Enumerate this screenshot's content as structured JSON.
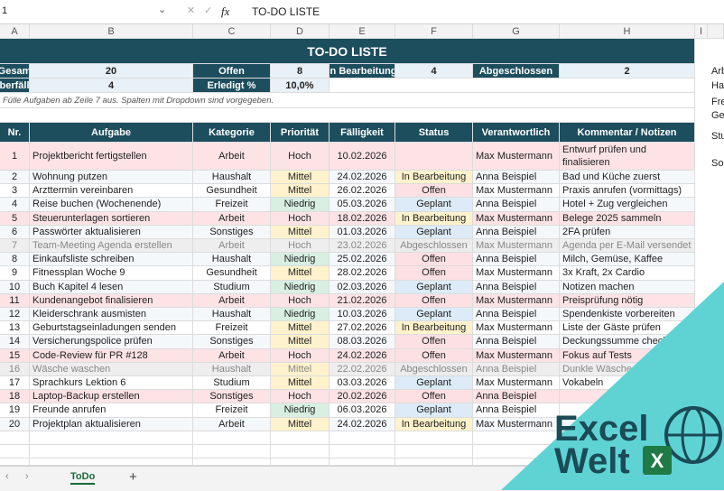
{
  "formula_bar": {
    "name_box": "1",
    "fx": "fx",
    "content": "TO-DO LISTE"
  },
  "column_headers": [
    "A",
    "B",
    "C",
    "D",
    "E",
    "F",
    "G",
    "H",
    "I"
  ],
  "title": "TO-DO LISTE",
  "summary": [
    {
      "label": "Gesam",
      "value": 20
    },
    {
      "label": "Offen",
      "value": 8
    },
    {
      "label": "In Bearbeitung",
      "value": 4
    },
    {
      "label": "Abgeschlossen",
      "value": 2
    },
    {
      "label": "berfäll",
      "value": 4
    },
    {
      "label": "Erledigt %",
      "value": "10,0%"
    }
  ],
  "note": "Fülle Aufgaben ab Zeile 7 aus. Spalten mit Dropdown sind vorgegeben.",
  "table": {
    "columns": [
      "Nr.",
      "Aufgabe",
      "Kategorie",
      "Priorität",
      "Fälligkeit",
      "Status",
      "Verantwortlich",
      "Kommentar / Notizen"
    ],
    "rows": [
      [
        1,
        "Projektbericht fertigstellen",
        "Arbeit",
        "Hoch",
        "10.02.2026",
        null,
        "Max Mustermann",
        "Entwurf prüfen und finalisieren"
      ],
      [
        2,
        "Wohnung putzen",
        "Haushalt",
        "Mittel",
        "24.02.2026",
        "In Bearbeitung",
        "Anna Beispiel",
        "Bad und Küche zuerst"
      ],
      [
        3,
        "Arzttermin vereinbaren",
        "Gesundheit",
        "Mittel",
        "26.02.2026",
        "Offen",
        "Max Mustermann",
        "Praxis anrufen (vormittags)"
      ],
      [
        4,
        "Reise buchen (Wochenende)",
        "Freizeit",
        "Niedrig",
        "05.03.2026",
        "Geplant",
        "Anna Beispiel",
        "Hotel + Zug vergleichen"
      ],
      [
        5,
        "Steuerunterlagen sortieren",
        "Arbeit",
        "Hoch",
        "18.02.2026",
        "In Bearbeitung",
        "Max Mustermann",
        "Belege 2025 sammeln"
      ],
      [
        6,
        "Passwörter aktualisieren",
        "Sonstiges",
        "Mittel",
        "01.03.2026",
        "Geplant",
        "Anna Beispiel",
        "2FA prüfen"
      ],
      [
        7,
        "Team-Meeting Agenda erstellen",
        "Arbeit",
        "Hoch",
        "23.02.2026",
        "Abgeschlossen",
        "Max Mustermann",
        "Agenda per E-Mail versendet"
      ],
      [
        8,
        "Einkaufsliste schreiben",
        "Haushalt",
        "Niedrig",
        "25.02.2026",
        "Offen",
        "Anna Beispiel",
        "Milch, Gemüse, Kaffee"
      ],
      [
        9,
        "Fitnessplan Woche 9",
        "Gesundheit",
        "Mittel",
        "28.02.2026",
        "Offen",
        "Max Mustermann",
        "3x Kraft, 2x Cardio"
      ],
      [
        10,
        "Buch Kapitel 4 lesen",
        "Studium",
        "Niedrig",
        "02.03.2026",
        "Geplant",
        "Anna Beispiel",
        "Notizen machen"
      ],
      [
        11,
        "Kundenangebot finalisieren",
        "Arbeit",
        "Hoch",
        "21.02.2026",
        "Offen",
        "Max Mustermann",
        "Preisprüfung nötig"
      ],
      [
        12,
        "Kleiderschrank ausmisten",
        "Haushalt",
        "Niedrig",
        "10.03.2026",
        "Geplant",
        "Anna Beispiel",
        "Spendenkiste vorbereiten"
      ],
      [
        13,
        "Geburtstagseinladungen senden",
        "Freizeit",
        "Mittel",
        "27.02.2026",
        "In Bearbeitung",
        "Max Mustermann",
        "Liste der Gäste prüfen"
      ],
      [
        14,
        "Versicherungspolice prüfen",
        "Sonstiges",
        "Mittel",
        "08.03.2026",
        "Offen",
        "Anna Beispiel",
        "Deckungssumme checken"
      ],
      [
        15,
        "Code-Review für PR #128",
        "Arbeit",
        "Hoch",
        "24.02.2026",
        "Offen",
        "Max Mustermann",
        "Fokus auf Tests"
      ],
      [
        16,
        "Wäsche waschen",
        "Haushalt",
        "Mittel",
        "22.02.2026",
        "Abgeschlossen",
        "Anna Beispiel",
        "Dunkle Wäsche"
      ],
      [
        17,
        "Sprachkurs Lektion 6",
        "Studium",
        "Mittel",
        "03.03.2026",
        "Geplant",
        "Max Mustermann",
        "Vokabeln"
      ],
      [
        18,
        "Laptop-Backup erstellen",
        "Sonstiges",
        "Hoch",
        "20.02.2026",
        "Offen",
        "Anna Beispiel",
        null
      ],
      [
        19,
        "Freunde anrufen",
        "Freizeit",
        "Niedrig",
        "06.03.2026",
        "Geplant",
        "Anna Beispiel",
        null
      ],
      [
        20,
        "Projektplan aktualisieren",
        "Arbeit",
        "Mittel",
        "24.02.2026",
        "In Bearbeitung",
        "Max Mustermann",
        null
      ]
    ]
  },
  "side_list": [
    "Arb",
    "Hau",
    "Fre",
    "Ges",
    "Stu",
    "Son"
  ],
  "sheet_tab": "ToDo",
  "logo": {
    "line1": "Excel",
    "line2": "Welt",
    "badge": "X"
  }
}
